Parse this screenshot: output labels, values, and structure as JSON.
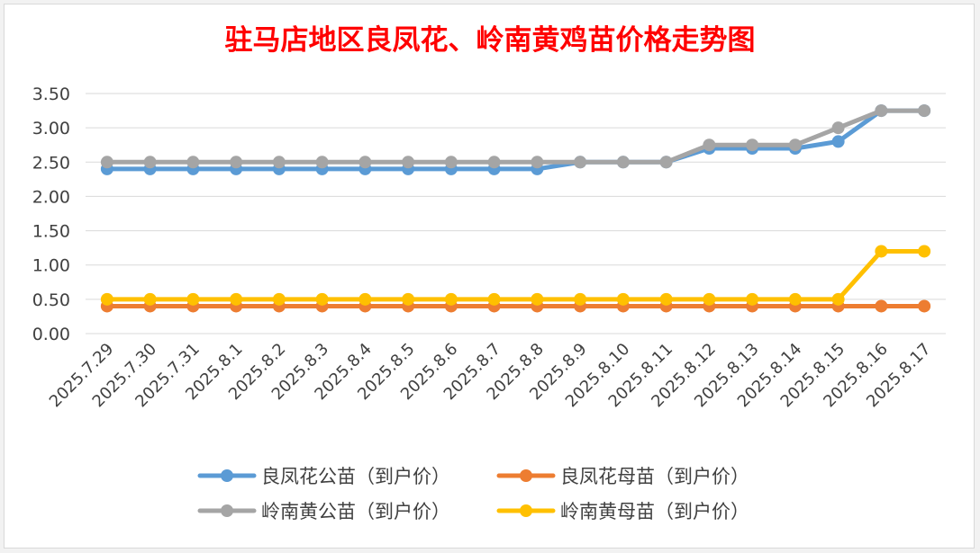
{
  "chart_data": {
    "type": "line",
    "title": "驻马店地区良凤花、岭南黄鸡苗价格走势图",
    "xlabel": "",
    "ylabel": "",
    "ylim": [
      0,
      3.5
    ],
    "yticks": [
      "0.00",
      "0.50",
      "1.00",
      "1.50",
      "2.00",
      "2.50",
      "3.00",
      "3.50"
    ],
    "grid": "horizontal",
    "legend": "bottom",
    "categories": [
      "2025.7.29",
      "2025.7.30",
      "2025.7.31",
      "2025.8.1",
      "2025.8.2",
      "2025.8.3",
      "2025.8.4",
      "2025.8.5",
      "2025.8.6",
      "2025.8.7",
      "2025.8.8",
      "2025.8.9",
      "2025.8.10",
      "2025.8.11",
      "2025.8.12",
      "2025.8.13",
      "2025.8.14",
      "2025.8.15",
      "2025.8.16",
      "2025.8.17"
    ],
    "series": [
      {
        "name": "良凤花公苗（到户价）",
        "color": "#5b9bd5",
        "values": [
          2.4,
          2.4,
          2.4,
          2.4,
          2.4,
          2.4,
          2.4,
          2.4,
          2.4,
          2.4,
          2.4,
          2.5,
          2.5,
          2.5,
          2.7,
          2.7,
          2.7,
          2.8,
          3.25,
          3.25
        ]
      },
      {
        "name": "良凤花母苗（到户价）",
        "color": "#ed7d31",
        "values": [
          0.4,
          0.4,
          0.4,
          0.4,
          0.4,
          0.4,
          0.4,
          0.4,
          0.4,
          0.4,
          0.4,
          0.4,
          0.4,
          0.4,
          0.4,
          0.4,
          0.4,
          0.4,
          0.4,
          0.4
        ]
      },
      {
        "name": "岭南黄公苗（到户价）",
        "color": "#a5a5a5",
        "values": [
          2.5,
          2.5,
          2.5,
          2.5,
          2.5,
          2.5,
          2.5,
          2.5,
          2.5,
          2.5,
          2.5,
          2.5,
          2.5,
          2.5,
          2.75,
          2.75,
          2.75,
          3.0,
          3.25,
          3.25
        ]
      },
      {
        "name": "岭南黄母苗（到户价）",
        "color": "#ffc000",
        "values": [
          0.5,
          0.5,
          0.5,
          0.5,
          0.5,
          0.5,
          0.5,
          0.5,
          0.5,
          0.5,
          0.5,
          0.5,
          0.5,
          0.5,
          0.5,
          0.5,
          0.5,
          0.5,
          1.2,
          1.2
        ]
      }
    ],
    "draw_order": [
      1,
      3,
      0,
      2
    ],
    "legend_order": [
      0,
      1,
      2,
      3
    ]
  }
}
